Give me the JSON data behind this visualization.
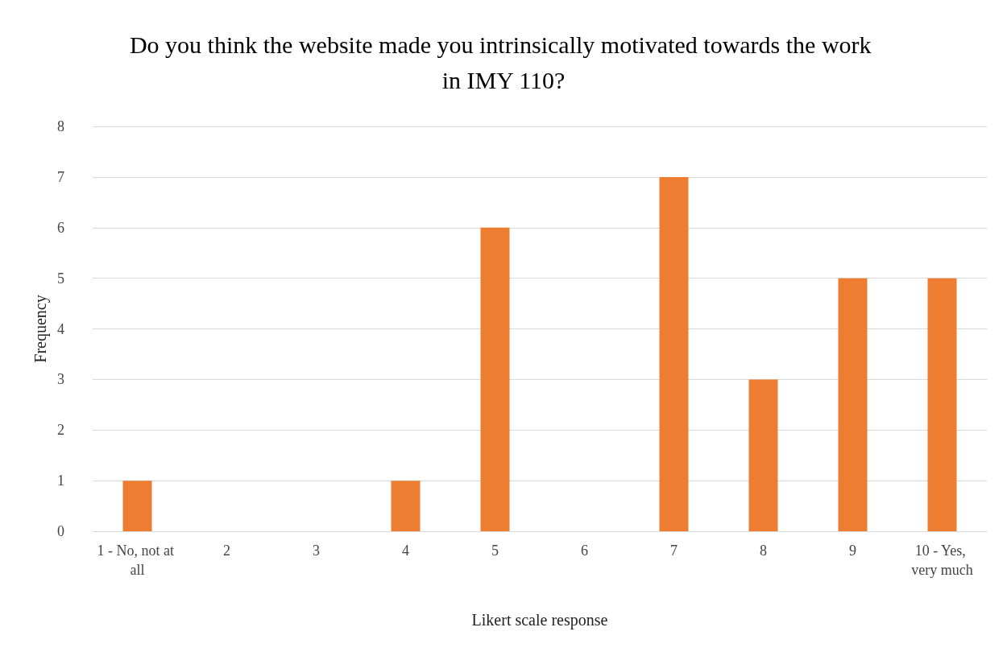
{
  "chart_data": {
    "type": "bar",
    "title": "Do you think the website made you intrinsically motivated towards the work in IMY 110?",
    "xlabel": "Likert scale response",
    "ylabel": "Frequency",
    "categories": [
      "1 - No, not at all",
      "2",
      "3",
      "4",
      "5",
      "6",
      "7",
      "8",
      "9",
      "10 - Yes, very much"
    ],
    "values": [
      1,
      0,
      0,
      1,
      6,
      0,
      7,
      3,
      5,
      5
    ],
    "color": "#ed7d31",
    "ylim": [
      0,
      8
    ],
    "yticks": [
      0,
      1,
      2,
      3,
      4,
      5,
      6,
      7,
      8
    ],
    "grid": "y"
  }
}
